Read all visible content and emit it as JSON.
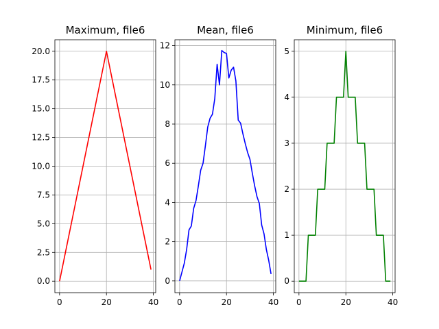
{
  "chart_data": [
    {
      "type": "line",
      "title": "Maximum, file6",
      "color": "#ff0000",
      "x": [
        0,
        20,
        39
      ],
      "y": [
        0,
        20,
        1
      ],
      "xlim": [
        -2,
        41
      ],
      "ylim": [
        -1,
        21
      ],
      "xticks": [
        0,
        20,
        40
      ],
      "xtick_labels": [
        "0",
        "20",
        "40"
      ],
      "yticks": [
        0,
        2.5,
        5,
        7.5,
        10,
        12.5,
        15,
        17.5,
        20
      ],
      "ytick_labels": [
        "0.0",
        "2.5",
        "5.0",
        "7.5",
        "10.0",
        "12.5",
        "15.0",
        "17.5",
        "20.0"
      ],
      "grid": true
    },
    {
      "type": "line",
      "title": "Mean, file6",
      "color": "#0000ff",
      "x": [
        0,
        1,
        2,
        3,
        4,
        5,
        6,
        7,
        8,
        9,
        10,
        11,
        12,
        13,
        14,
        15,
        16,
        17,
        18,
        19,
        20,
        21,
        22,
        23,
        24,
        25,
        26,
        27,
        28,
        29,
        30,
        31,
        32,
        33,
        34,
        35,
        36,
        37,
        38,
        39
      ],
      "y": [
        0,
        0.45,
        0.9,
        1.6,
        2.6,
        2.8,
        3.7,
        4.1,
        4.85,
        5.65,
        6.0,
        6.9,
        7.85,
        8.3,
        8.5,
        9.3,
        11.05,
        10.0,
        11.75,
        11.65,
        11.6,
        10.35,
        10.75,
        10.9,
        10.2,
        8.2,
        8.05,
        7.5,
        7.0,
        6.55,
        6.2,
        5.5,
        4.85,
        4.3,
        3.95,
        2.85,
        2.4,
        1.6,
        1.05,
        0.35
      ],
      "xlim": [
        -2,
        41
      ],
      "ylim": [
        -0.6,
        12.3
      ],
      "xticks": [
        0,
        20,
        40
      ],
      "xtick_labels": [
        "0",
        "20",
        "40"
      ],
      "yticks": [
        0,
        2,
        4,
        6,
        8,
        10,
        12
      ],
      "ytick_labels": [
        "0",
        "2",
        "4",
        "6",
        "8",
        "10",
        "12"
      ],
      "grid": true
    },
    {
      "type": "line",
      "title": "Minimum, file6",
      "color": "#008000",
      "x": [
        0,
        1,
        2,
        3,
        4,
        5,
        6,
        7,
        8,
        9,
        10,
        11,
        12,
        13,
        14,
        15,
        16,
        17,
        18,
        19,
        20,
        21,
        22,
        23,
        24,
        25,
        26,
        27,
        28,
        29,
        30,
        31,
        32,
        33,
        34,
        35,
        36,
        37,
        38,
        39
      ],
      "y": [
        0,
        0,
        0,
        0,
        1,
        1,
        1,
        1,
        2,
        2,
        2,
        2,
        3,
        3,
        3,
        3,
        4,
        4,
        4,
        4,
        5,
        4,
        4,
        4,
        4,
        3,
        3,
        3,
        3,
        2,
        2,
        2,
        2,
        1,
        1,
        1,
        1,
        0,
        0,
        0
      ],
      "xlim": [
        -2,
        41
      ],
      "ylim": [
        -0.25,
        5.25
      ],
      "xticks": [
        0,
        20,
        40
      ],
      "xtick_labels": [
        "0",
        "20",
        "40"
      ],
      "yticks": [
        0,
        1,
        2,
        3,
        4,
        5
      ],
      "ytick_labels": [
        "0",
        "1",
        "2",
        "3",
        "4",
        "5"
      ],
      "grid": true
    }
  ]
}
